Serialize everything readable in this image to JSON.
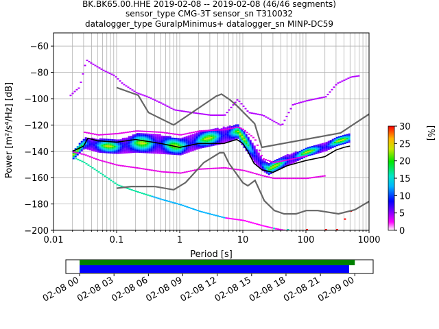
{
  "figure": {
    "title_lines": [
      "BK.BK65.00.HHE   2019-02-08 -- 2019-02-08  (46/46 segments)",
      "sensor_type CMG-3T sensor_sn T310032",
      "datalogger_type GuralpMinimus+ datalogger_sn MINP-DC59"
    ]
  },
  "chart_data": [
    {
      "type": "heatmap",
      "title": "BK.BK65.00.HHE   2019-02-08 -- 2019-02-08  (46/46 segments)",
      "xlabel": "Period [s]",
      "ylabel": "Power [m²/s⁴/Hz] [dB]",
      "xscale": "log",
      "xlim": [
        0.01,
        1000
      ],
      "ylim": [
        -200,
        -50
      ],
      "x_ticks": [
        "0.01",
        "0.1",
        "1",
        "10",
        "100",
        "1000"
      ],
      "y_ticks": [
        "−60",
        "−80",
        "−100",
        "−120",
        "−140",
        "−160",
        "−180",
        "−200"
      ],
      "grid": true,
      "colorbar": {
        "label": "[%]",
        "range": [
          0,
          30
        ],
        "ticks": [
          "0",
          "5",
          "10",
          "15",
          "20",
          "25",
          "30"
        ]
      },
      "density_band": {
        "periods": [
          0.02,
          0.03,
          0.05,
          0.1,
          0.2,
          0.5,
          1,
          2,
          5,
          8,
          10,
          15,
          20,
          25,
          30,
          50,
          100,
          200,
          300,
          500
        ],
        "center": [
          -142,
          -133,
          -135,
          -136,
          -133,
          -134,
          -136,
          -131,
          -127,
          -124,
          -130,
          -142,
          -150,
          -153,
          -151,
          -146,
          -140,
          -136,
          -132,
          -129
        ],
        "halfwidth": [
          3,
          4,
          5,
          5,
          7,
          7,
          6,
          6,
          6,
          5,
          6,
          6,
          4,
          4,
          4,
          4,
          3,
          3,
          3,
          3
        ]
      },
      "series": [
        {
          "name": "mean",
          "x": [
            0.02,
            0.03,
            0.035,
            0.05,
            0.1,
            0.2,
            0.5,
            1,
            2,
            5,
            8,
            10,
            12,
            15,
            20,
            30,
            50,
            100,
            200,
            300,
            400,
            500
          ],
          "y": [
            -140,
            -136,
            -130,
            -132,
            -133,
            -131,
            -134,
            -137,
            -134,
            -134,
            -131,
            -134,
            -140,
            -149,
            -154,
            -156,
            -151,
            -147,
            -144,
            -139,
            -137,
            -136
          ]
        },
        {
          "name": "NHNM",
          "x": [
            0.1,
            0.22,
            0.32,
            0.8,
            3.8,
            4.6,
            6.3,
            7.9,
            15.4,
            20,
            354.8,
            10000
          ],
          "y": [
            -91.5,
            -97.4,
            -110.5,
            -120,
            -98,
            -96.5,
            -101,
            -105,
            -119,
            -137,
            -126,
            -80
          ]
        },
        {
          "name": "NLNM",
          "x": [
            0.1,
            0.17,
            0.4,
            0.8,
            1.24,
            2.4,
            4.3,
            5,
            6,
            10,
            12,
            15.6,
            21.9,
            31.6,
            45,
            70,
            101,
            154,
            328,
            600,
            1000
          ],
          "y": [
            -168,
            -166.7,
            -166.7,
            -169.2,
            -163.7,
            -148.6,
            -141.1,
            -141.1,
            -149,
            -163.8,
            -166.2,
            -162.1,
            -177.5,
            -185,
            -187.5,
            -187.5,
            -185,
            -185,
            -187.5,
            -184.4,
            -178
          ]
        }
      ],
      "outlier_traces": [
        {
          "name": "upper",
          "x": [
            0.018,
            0.022,
            0.025,
            0.032,
            0.04,
            0.06,
            0.09,
            0.12,
            0.2,
            0.3,
            0.5,
            0.8,
            1.5,
            3,
            5,
            8,
            12,
            20,
            40,
            60,
            100,
            200,
            300,
            500,
            700
          ],
          "y": [
            -97,
            -93,
            -91,
            -70,
            -73,
            -78,
            -82,
            -88,
            -95,
            -98,
            -103,
            -108,
            -110,
            -112,
            -112,
            -100,
            -110,
            -112,
            -120,
            -104,
            -101,
            -98,
            -88,
            -83,
            -82
          ]
        },
        {
          "name": "low-noise",
          "x": [
            0.022,
            0.03,
            0.05,
            0.1,
            0.2,
            0.5,
            1,
            2,
            5,
            10,
            20,
            30,
            50
          ],
          "y": [
            -145,
            -148,
            -155,
            -165,
            -170,
            -176,
            -180,
            -185,
            -190,
            -192,
            -196,
            -198,
            -200
          ]
        },
        {
          "name": "pink-upper",
          "x": [
            0.03,
            0.05,
            0.1,
            0.2,
            0.5,
            1,
            2,
            5,
            8,
            10,
            15,
            20,
            30,
            50,
            100
          ],
          "y": [
            -125,
            -127,
            -126,
            -124,
            -125,
            -127,
            -124,
            -123,
            -121,
            -123,
            -130,
            -145,
            -148,
            -146,
            -143
          ]
        },
        {
          "name": "pink-lower",
          "x": [
            0.02,
            0.03,
            0.05,
            0.1,
            0.2,
            0.5,
            1,
            2,
            5,
            10,
            20,
            30,
            50,
            100,
            200
          ],
          "y": [
            -140,
            -142,
            -146,
            -150,
            -152,
            -155,
            -156,
            -153,
            -152,
            -154,
            -158,
            -160,
            -160,
            -160,
            -158
          ]
        }
      ],
      "low_tail": {
        "x": [
          30,
          50,
          100,
          200,
          300,
          400,
          500
        ],
        "y": [
          -199,
          -200,
          -200,
          -200,
          -200,
          -192,
          -186
        ]
      }
    },
    {
      "type": "bar",
      "title": "",
      "xlabel": "",
      "x_ticks": [
        "02-08 00",
        "02-08 03",
        "02-08 06",
        "02-08 09",
        "02-08 12",
        "02-08 15",
        "02-08 18",
        "02-08 21",
        "02-09 00"
      ],
      "xlim_hours": [
        -1.2,
        25.6
      ],
      "series": [
        {
          "name": "data coverage",
          "color": "#008000",
          "start_hour": 0,
          "end_hour": 24
        },
        {
          "name": "psd coverage",
          "color": "#0000ff",
          "start_hour": 0,
          "end_hour": 23.5
        }
      ]
    }
  ]
}
